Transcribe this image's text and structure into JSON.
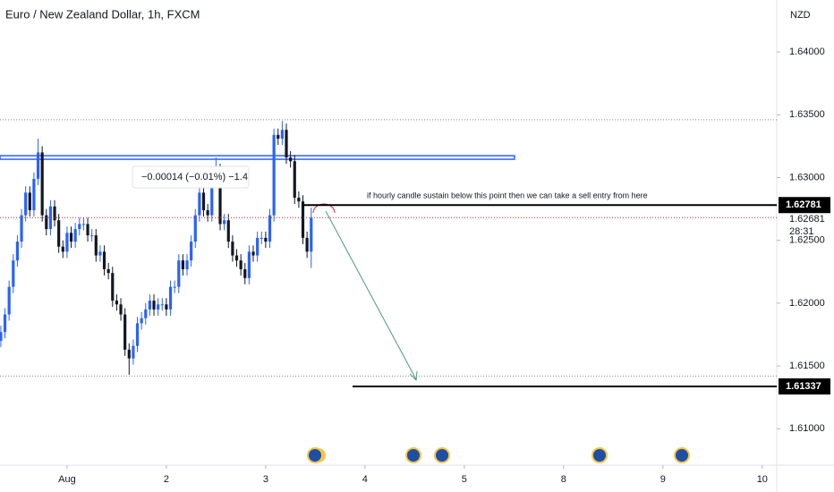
{
  "chart_data": {
    "type": "candlestick",
    "title": "Euro / New Zealand Dollar, 1h, FXCM",
    "currency": "NZD",
    "x": [
      -16,
      -15,
      -14,
      -13,
      -12,
      -11,
      -10,
      -9,
      -8,
      -7,
      -6,
      -5,
      -4,
      -3,
      -2,
      -1,
      0,
      1,
      2,
      3,
      4,
      5,
      6,
      7,
      8,
      9,
      10,
      11,
      12,
      13,
      14,
      15,
      16,
      17,
      18,
      19,
      20,
      21,
      22,
      23,
      24,
      25,
      26,
      27,
      28,
      29,
      30,
      31,
      32,
      33,
      34,
      35,
      36,
      37,
      38,
      39,
      40,
      41,
      42,
      43,
      44,
      45,
      46,
      47,
      48,
      49,
      50,
      51,
      52,
      53,
      54,
      55,
      56,
      57,
      58,
      59
    ],
    "open": [
      1.617,
      1.6177,
      1.6191,
      1.6213,
      1.6234,
      1.6249,
      1.627,
      1.6288,
      1.6274,
      1.6299,
      1.632,
      1.627,
      1.6259,
      1.6277,
      1.6266,
      1.6245,
      1.6241,
      1.6256,
      1.6249,
      1.6259,
      1.6263,
      1.6263,
      1.6254,
      1.6254,
      1.6238,
      1.6241,
      1.6227,
      1.6224,
      1.6202,
      1.6199,
      1.6191,
      1.6163,
      1.6156,
      1.6166,
      1.6184,
      1.6188,
      1.6195,
      1.6202,
      1.6195,
      1.6199,
      1.6199,
      1.6195,
      1.6213,
      1.6213,
      1.6234,
      1.6227,
      1.6234,
      1.6249,
      1.627,
      1.6288,
      1.6274,
      1.627,
      1.6299,
      1.6306,
      1.6263,
      1.6266,
      1.6249,
      1.6238,
      1.6234,
      1.6227,
      1.622,
      1.6241,
      1.6238,
      1.6252,
      1.6252,
      1.6249,
      1.627,
      1.6334,
      1.6331,
      1.6338,
      1.6316,
      1.6313,
      1.6284,
      1.6281,
      1.6252,
      1.6241
    ],
    "close": [
      1.6177,
      1.6191,
      1.6213,
      1.6234,
      1.6249,
      1.627,
      1.6288,
      1.6274,
      1.6299,
      1.632,
      1.627,
      1.6259,
      1.6277,
      1.6266,
      1.6245,
      1.6241,
      1.6256,
      1.6249,
      1.6259,
      1.6263,
      1.6263,
      1.6254,
      1.6254,
      1.6238,
      1.6241,
      1.6227,
      1.6224,
      1.6202,
      1.6199,
      1.6191,
      1.6163,
      1.6156,
      1.6166,
      1.6184,
      1.6188,
      1.6195,
      1.6202,
      1.6195,
      1.6199,
      1.6199,
      1.6195,
      1.6213,
      1.6213,
      1.6234,
      1.6227,
      1.6234,
      1.6249,
      1.627,
      1.6288,
      1.6274,
      1.627,
      1.6299,
      1.6306,
      1.6263,
      1.6266,
      1.6249,
      1.6238,
      1.6234,
      1.6227,
      1.622,
      1.6241,
      1.6238,
      1.6252,
      1.6252,
      1.6249,
      1.627,
      1.6334,
      1.6331,
      1.6338,
      1.6316,
      1.6313,
      1.6284,
      1.6281,
      1.6252,
      1.6241,
      1.6268
    ],
    "high": [
      1.6182,
      1.6196,
      1.6218,
      1.6239,
      1.6254,
      1.6275,
      1.6293,
      1.6293,
      1.6304,
      1.6331,
      1.6325,
      1.6275,
      1.6282,
      1.6282,
      1.6271,
      1.625,
      1.6261,
      1.6261,
      1.6264,
      1.6268,
      1.6268,
      1.6268,
      1.6259,
      1.6259,
      1.6246,
      1.6246,
      1.6232,
      1.6229,
      1.6207,
      1.6204,
      1.6196,
      1.6168,
      1.6171,
      1.6189,
      1.6193,
      1.62,
      1.6207,
      1.6207,
      1.6204,
      1.6204,
      1.6204,
      1.6218,
      1.6218,
      1.6239,
      1.6239,
      1.6239,
      1.6254,
      1.6275,
      1.6293,
      1.6293,
      1.6279,
      1.6304,
      1.6316,
      1.6311,
      1.6271,
      1.6271,
      1.6254,
      1.6243,
      1.6239,
      1.6232,
      1.6246,
      1.6246,
      1.6257,
      1.6257,
      1.6257,
      1.6275,
      1.6339,
      1.6339,
      1.6345,
      1.6343,
      1.6321,
      1.6318,
      1.6289,
      1.6286,
      1.6257,
      1.6276
    ],
    "low": [
      1.6165,
      1.6172,
      1.6186,
      1.6208,
      1.6229,
      1.6244,
      1.6265,
      1.6269,
      1.6269,
      1.6294,
      1.6265,
      1.6254,
      1.6254,
      1.6261,
      1.624,
      1.6236,
      1.6236,
      1.6244,
      1.6244,
      1.6254,
      1.6258,
      1.6249,
      1.6249,
      1.6233,
      1.6233,
      1.6222,
      1.6219,
      1.6197,
      1.6194,
      1.6186,
      1.6158,
      1.6143,
      1.6151,
      1.6161,
      1.6179,
      1.6183,
      1.619,
      1.619,
      1.619,
      1.6194,
      1.619,
      1.619,
      1.6208,
      1.6208,
      1.6222,
      1.6222,
      1.6229,
      1.6244,
      1.6265,
      1.6269,
      1.6265,
      1.6265,
      1.6294,
      1.6258,
      1.6258,
      1.6244,
      1.6233,
      1.6229,
      1.6222,
      1.6215,
      1.6215,
      1.6233,
      1.6233,
      1.6247,
      1.6244,
      1.6244,
      1.6265,
      1.6326,
      1.6326,
      1.6311,
      1.6308,
      1.6279,
      1.6276,
      1.6247,
      1.6236,
      1.6228
    ],
    "up_color": "#2962ff",
    "down_color": "#131722",
    "xlim": [
      -16.2,
      171.5
    ],
    "xticks": [
      {
        "value": 0,
        "label": "Aug"
      },
      {
        "value": 24,
        "label": "2"
      },
      {
        "value": 48,
        "label": "3"
      },
      {
        "value": 72,
        "label": "4"
      },
      {
        "value": 96,
        "label": "5"
      },
      {
        "value": 120,
        "label": "8"
      },
      {
        "value": 144,
        "label": "9"
      },
      {
        "value": 168,
        "label": "10"
      }
    ],
    "ylim": [
      1.6071,
      1.64414
    ],
    "yticks": [
      {
        "value": 1.64,
        "label": "1.64000"
      },
      {
        "value": 1.635,
        "label": "1.63500"
      },
      {
        "value": 1.63,
        "label": "1.63000"
      },
      {
        "value": 1.625,
        "label": "1.62500"
      },
      {
        "value": 1.62,
        "label": "1.62000"
      },
      {
        "value": 1.615,
        "label": "1.61500"
      },
      {
        "value": 1.61,
        "label": "1.61000"
      }
    ],
    "levels": [
      {
        "value": 1.62781,
        "label": "1.62781",
        "color": "#000000",
        "from": 57
      },
      {
        "value": 1.61337,
        "label": "1.61337",
        "color": "#000000",
        "from": 69
      }
    ],
    "zones": [
      {
        "value": 1.6316,
        "color": "#2962ff"
      }
    ],
    "dotted": [
      {
        "value": 1.6346,
        "color": "#888888"
      },
      {
        "value": 1.6142,
        "color": "#888888"
      }
    ],
    "current_price": {
      "value": 1.62681,
      "label": "1.62681",
      "countdown": "28:31",
      "color": "#d32f2f"
    },
    "annotation": "if hourly candle sustain below this point then we can take a sell entry from here",
    "measure": "−0.00014 (−0.01%) −1.4"
  }
}
